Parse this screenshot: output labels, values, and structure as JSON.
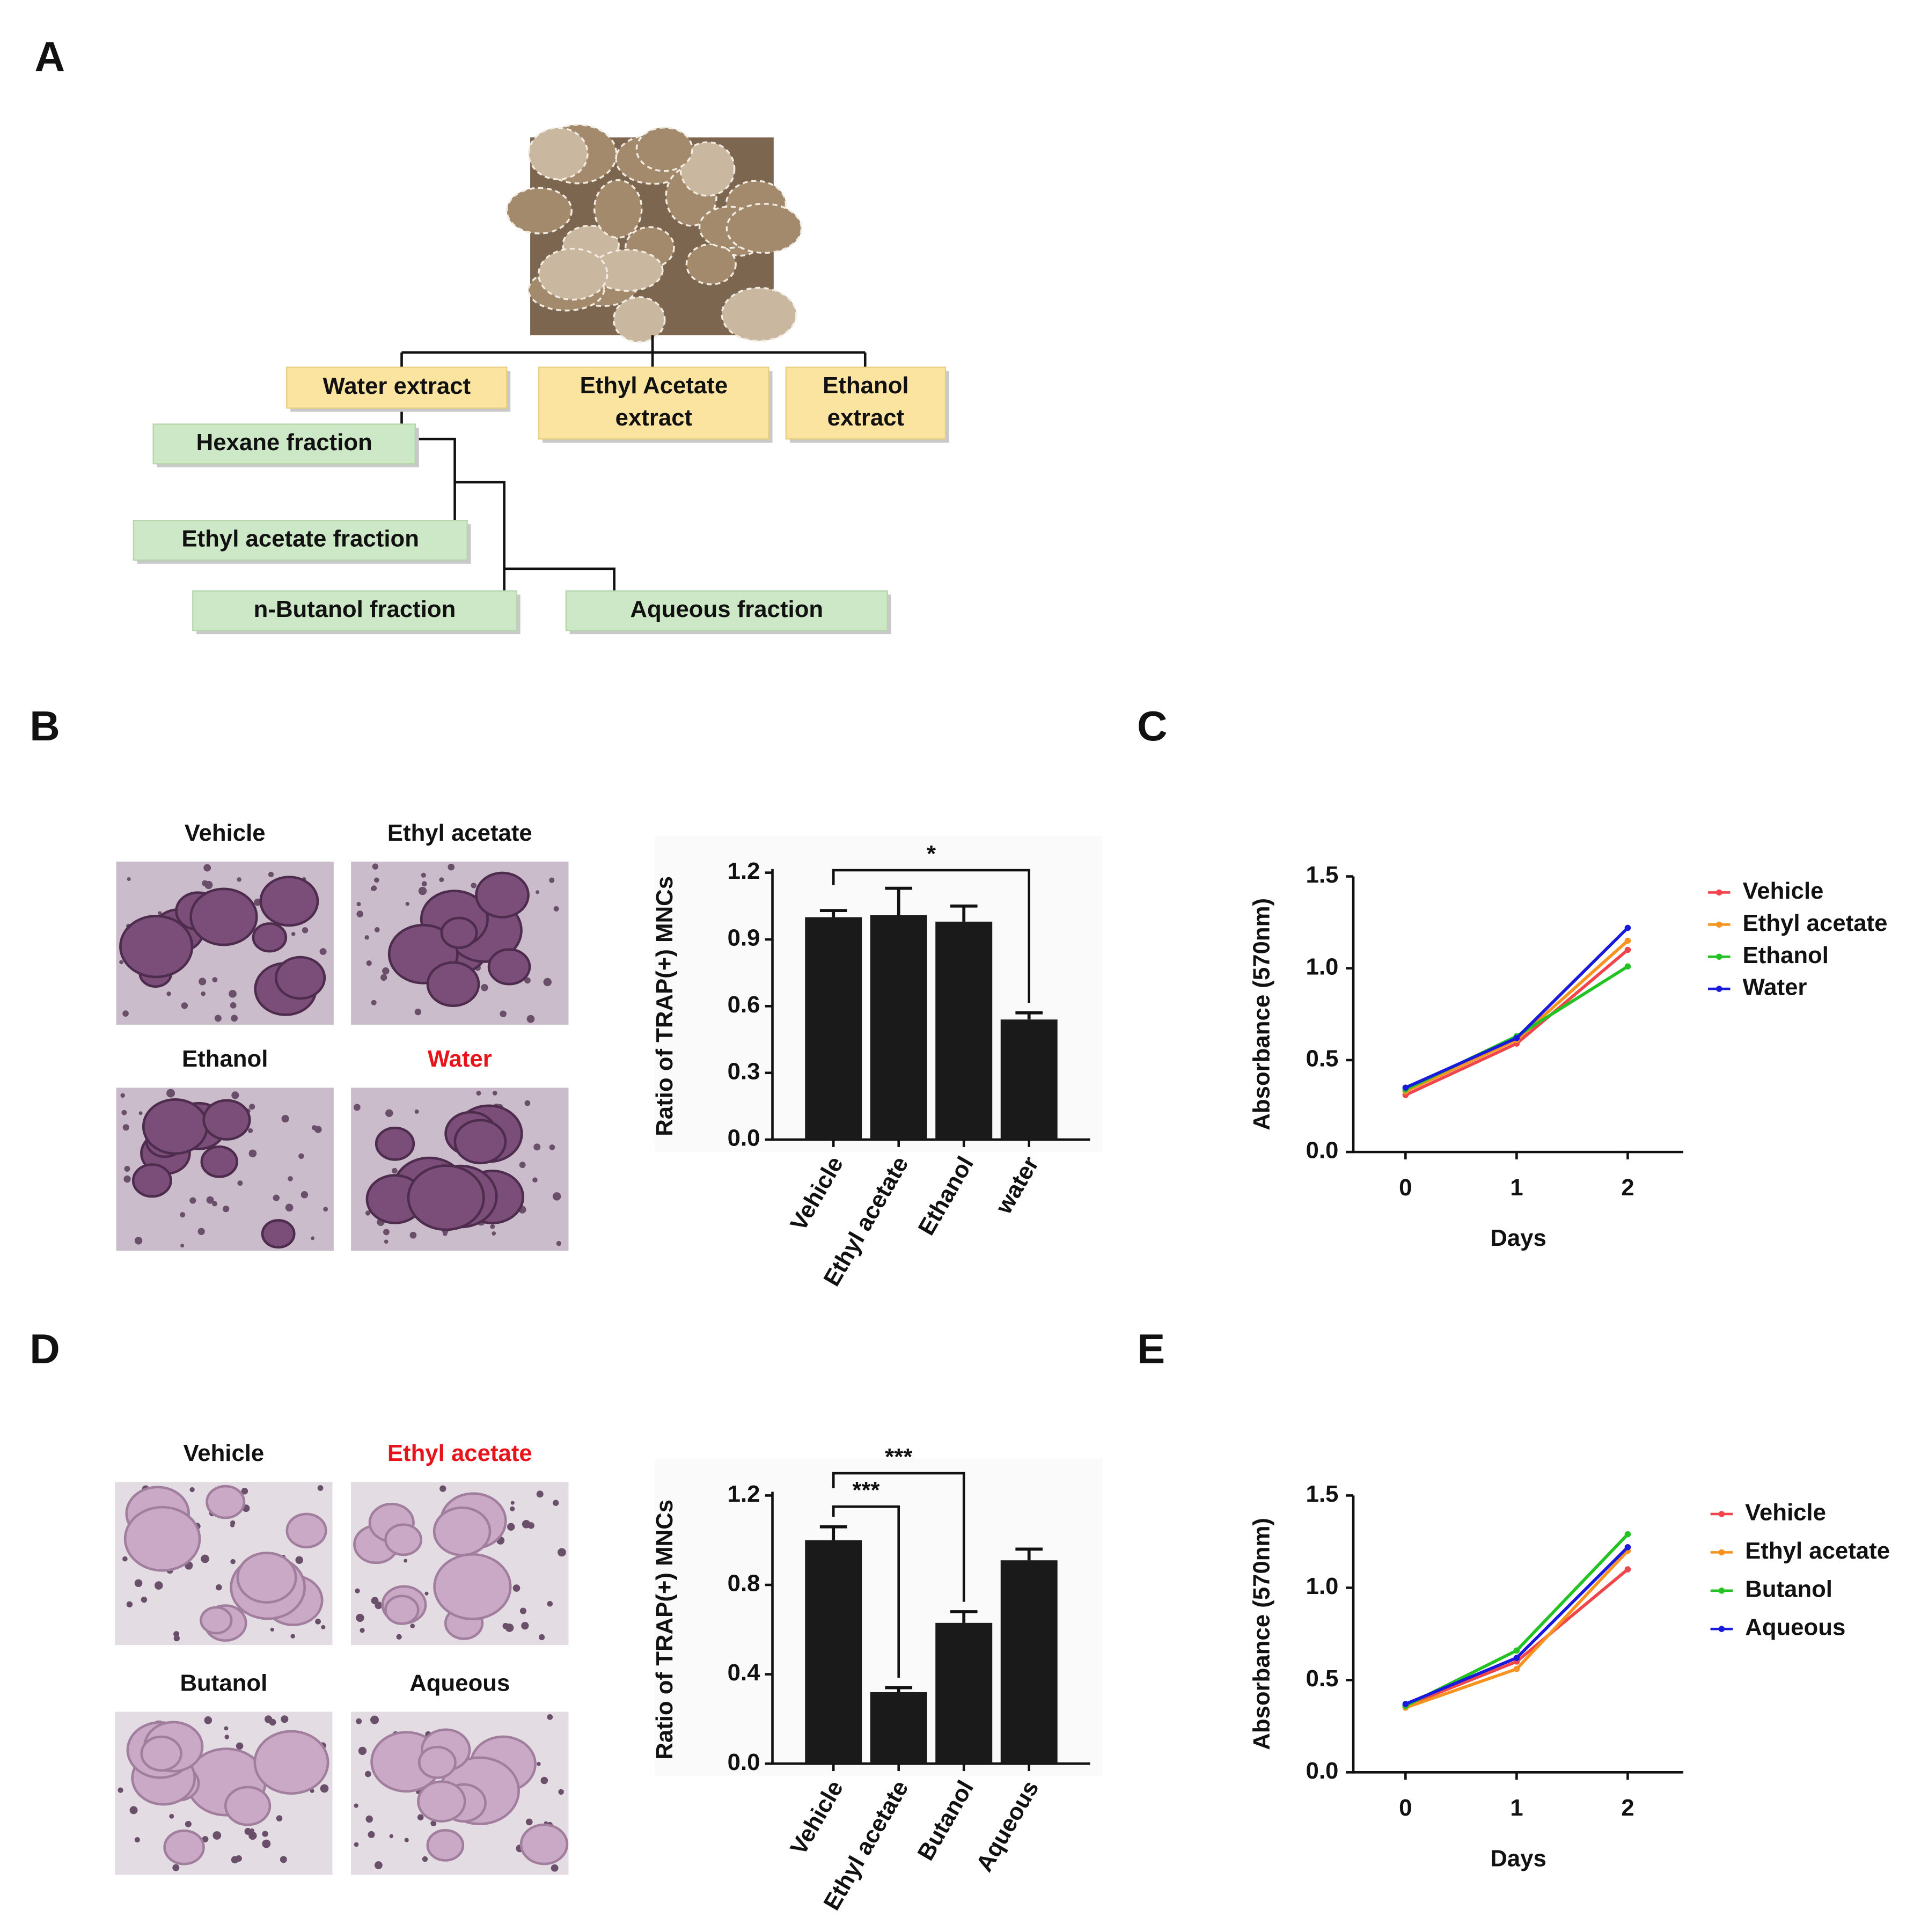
{
  "panel_labels": [
    "A",
    "B",
    "C",
    "D",
    "E"
  ],
  "diagram": {
    "nodes": [
      {
        "lines": [
          "Water extract"
        ]
      },
      {
        "lines": [
          "Ethyl Acetate",
          "extract"
        ]
      },
      {
        "lines": [
          "Ethanol",
          "extract"
        ]
      },
      {
        "lines": [
          "Hexane fraction"
        ]
      },
      {
        "lines": [
          "Ethyl acetate fraction"
        ]
      },
      {
        "lines": [
          "n-Butanol fraction"
        ]
      },
      {
        "lines": [
          "Aqueous fraction"
        ]
      }
    ]
  },
  "micrographs": {
    "B": [
      "Vehicle",
      "Ethyl acetate",
      "Ethanol",
      "Water"
    ],
    "D": [
      "Vehicle",
      "Ethyl acetate",
      "Butanol",
      "Aqueous"
    ]
  },
  "chart_data": [
    {
      "type": "bar",
      "y_label": "Ratio of TRAP(+) MNCs",
      "categories": [
        "Vehicle",
        "Ethyl acetate",
        "Ethanol",
        "water"
      ],
      "values": [
        1.0,
        1.01,
        0.98,
        0.54
      ],
      "errors": [
        0.03,
        0.12,
        0.07,
        0.03
      ],
      "color": "#1a1a1a",
      "ylim": [
        0,
        1.2
      ],
      "yticks": [
        {
          "value": 0,
          "label": "0.0"
        },
        0.3,
        0.6,
        0.9,
        1.2
      ],
      "comparisons": [
        {
          "label": "*",
          "categories": [
            "Vehicle",
            "water"
          ]
        }
      ]
    },
    {
      "type": "line",
      "x_label": "Days",
      "y_label": "Absorbance (570nm)",
      "x": [
        0,
        1,
        2
      ],
      "xlim": [
        -0.47,
        2.5
      ],
      "xticks": [
        0,
        1,
        2
      ],
      "ylim": [
        0,
        1.5
      ],
      "yticks": [
        {
          "value": 0,
          "label": "0.0"
        },
        0.5,
        {
          "value": 1,
          "label": "1.0"
        },
        1.5
      ],
      "series": [
        {
          "name": "Vehicle",
          "color": "#f0454a",
          "values": [
            0.31,
            0.59,
            1.1
          ]
        },
        {
          "name": "Ethyl acetate",
          "color": "#f7931e",
          "values": [
            0.33,
            0.61,
            1.15
          ]
        },
        {
          "name": "Ethanol",
          "color": "#22c322",
          "values": [
            0.34,
            0.63,
            1.01
          ]
        },
        {
          "name": "Water",
          "color": "#1a1adc",
          "values": [
            0.35,
            0.62,
            1.22
          ]
        }
      ]
    },
    {
      "type": "bar",
      "y_label": "Ratio of TRAP(+) MNCs",
      "categories": [
        "Vehicle",
        "Ethyl acetate",
        "Butanol",
        "Aqueous"
      ],
      "values": [
        1.0,
        0.32,
        0.63,
        0.91
      ],
      "errors": [
        0.06,
        0.02,
        0.05,
        0.05
      ],
      "color": "#1a1a1a",
      "ylim": [
        0,
        1.2
      ],
      "yticks": [
        {
          "value": 0,
          "label": "0.0"
        },
        0.4,
        0.8,
        1.2
      ],
      "comparisons": [
        {
          "label": "***",
          "categories": [
            "Vehicle",
            "Ethyl acetate"
          ]
        },
        {
          "label": "***",
          "categories": [
            "Vehicle",
            "Butanol"
          ]
        }
      ]
    },
    {
      "type": "line",
      "x_label": "Days",
      "y_label": "Absorbance (570nm)",
      "x": [
        0,
        1,
        2
      ],
      "xlim": [
        -0.47,
        2.5
      ],
      "xticks": [
        0,
        1,
        2
      ],
      "ylim": [
        0,
        1.5
      ],
      "yticks": [
        {
          "value": 0,
          "label": "0.0"
        },
        0.5,
        {
          "value": 1,
          "label": "1.0"
        },
        1.5
      ],
      "series": [
        {
          "name": "Vehicle",
          "color": "#f0454a",
          "values": [
            0.36,
            0.6,
            1.1
          ]
        },
        {
          "name": "Ethyl acetate",
          "color": "#f7931e",
          "values": [
            0.35,
            0.56,
            1.2
          ]
        },
        {
          "name": "Butanol",
          "color": "#22c322",
          "values": [
            0.36,
            0.66,
            1.29
          ]
        },
        {
          "name": "Aqueous",
          "color": "#1a1adc",
          "values": [
            0.37,
            0.62,
            1.22
          ]
        }
      ]
    }
  ]
}
